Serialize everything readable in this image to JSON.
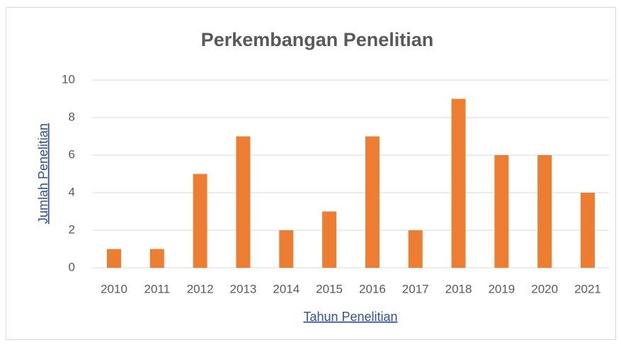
{
  "chart_data": {
    "type": "bar",
    "title": "Perkembangan Penelitian",
    "x_label": "Tahun Penelitian",
    "y_label": "Jumlah Penelitian",
    "categories": [
      "2010",
      "2011",
      "2012",
      "2013",
      "2014",
      "2015",
      "2016",
      "2017",
      "2018",
      "2019",
      "2020",
      "2021"
    ],
    "values": [
      1,
      1,
      5,
      7,
      2,
      3,
      7,
      2,
      9,
      6,
      6,
      4
    ],
    "color": "#ed7d31",
    "ylim": [
      0,
      10
    ],
    "yticks": [
      0,
      2,
      4,
      6,
      8,
      10
    ],
    "grid": true
  }
}
